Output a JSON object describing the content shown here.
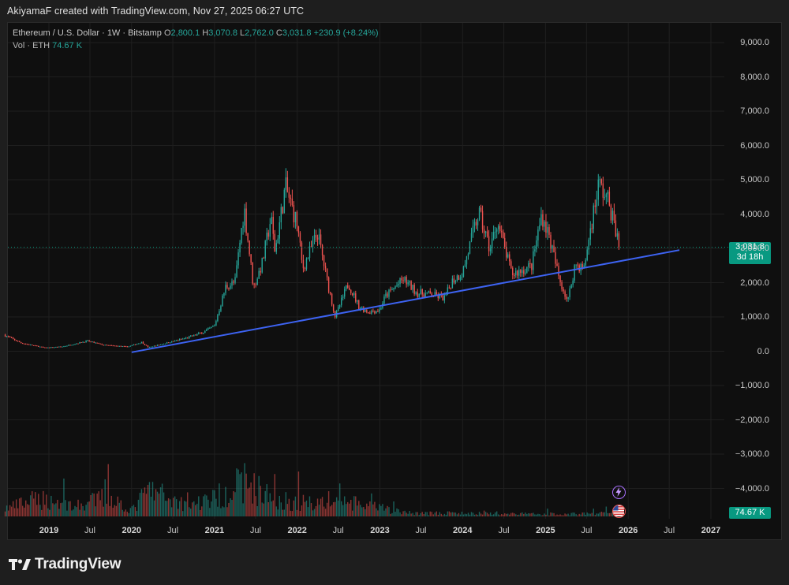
{
  "header": {
    "credit": "AkiyamaF created with TradingView.com, Nov 27, 2025 06:27 UTC"
  },
  "legend": {
    "symbol": "Ethereum / U.S. Dollar · 1W · Bitstamp",
    "open_label": "O",
    "open": "2,800.1",
    "high_label": "H",
    "high": "3,070.8",
    "low_label": "L",
    "low": "2,762.0",
    "close_label": "C",
    "close": "3,031.8",
    "change": "+230.9 (+8.24%)",
    "vol_label": "Vol · ETH",
    "vol_value": "74.67 K"
  },
  "price_tag": {
    "price": "3,031.8",
    "countdown": "3d 18h"
  },
  "volume_tag": "74.67 K",
  "footer": {
    "brand": "TradingView"
  },
  "colors": {
    "up": "#26a69a",
    "down": "#ef5350",
    "trendline": "#3d63f2",
    "bg": "#0f0f0f"
  },
  "icons": [
    "lightning-icon",
    "us-flag-icon"
  ],
  "chart_data": {
    "type": "candlestick",
    "symbol": "ETHUSD",
    "interval": "1W",
    "y_ticks": [
      "9,000.0",
      "8,000.0",
      "7,000.0",
      "6,000.0",
      "5,000.0",
      "4,000.0",
      "3,000.0",
      "2,000.0",
      "1,000.0",
      "0.0",
      "−1,000.0",
      "−2,000.0",
      "−3,000.0",
      "−4,000.0"
    ],
    "y_tick_values": [
      9000,
      8000,
      7000,
      6000,
      5000,
      4000,
      3000,
      2000,
      1000,
      0,
      -1000,
      -2000,
      -3000,
      -4000
    ],
    "x_ticks": [
      {
        "label": "2019",
        "date": "2019-01-01",
        "year": true
      },
      {
        "label": "Jul",
        "date": "2019-07-01",
        "year": false
      },
      {
        "label": "2020",
        "date": "2020-01-01",
        "year": true
      },
      {
        "label": "Jul",
        "date": "2020-07-01",
        "year": false
      },
      {
        "label": "2021",
        "date": "2021-01-01",
        "year": true
      },
      {
        "label": "Jul",
        "date": "2021-07-01",
        "year": false
      },
      {
        "label": "2022",
        "date": "2022-01-01",
        "year": true
      },
      {
        "label": "Jul",
        "date": "2022-07-01",
        "year": false
      },
      {
        "label": "2023",
        "date": "2023-01-01",
        "year": true
      },
      {
        "label": "Jul",
        "date": "2023-07-01",
        "year": false
      },
      {
        "label": "2024",
        "date": "2024-01-01",
        "year": true
      },
      {
        "label": "Jul",
        "date": "2024-07-01",
        "year": false
      },
      {
        "label": "2025",
        "date": "2025-01-01",
        "year": true
      },
      {
        "label": "Jul",
        "date": "2025-07-01",
        "year": false
      },
      {
        "label": "2026",
        "date": "2026-01-01",
        "year": true
      },
      {
        "label": "Jul",
        "date": "2026-07-01",
        "year": false
      },
      {
        "label": "2027",
        "date": "2027-01-01",
        "year": true
      }
    ],
    "price_path": [
      [
        "2018-06-15",
        480
      ],
      [
        "2018-09-01",
        240
      ],
      [
        "2018-12-15",
        100
      ],
      [
        "2019-03-01",
        135
      ],
      [
        "2019-06-20",
        300
      ],
      [
        "2019-09-01",
        180
      ],
      [
        "2019-12-15",
        130
      ],
      [
        "2020-02-15",
        265
      ],
      [
        "2020-03-15",
        110
      ],
      [
        "2020-06-01",
        240
      ],
      [
        "2020-09-01",
        390
      ],
      [
        "2020-11-15",
        560
      ],
      [
        "2021-01-01",
        740
      ],
      [
        "2021-02-20",
        1900
      ],
      [
        "2021-04-01",
        2000
      ],
      [
        "2021-05-12",
        4180
      ],
      [
        "2021-06-22",
        1850
      ],
      [
        "2021-08-01",
        2600
      ],
      [
        "2021-09-07",
        3900
      ],
      [
        "2021-09-25",
        2900
      ],
      [
        "2021-11-10",
        4800
      ],
      [
        "2022-01-01",
        3700
      ],
      [
        "2022-01-25",
        2400
      ],
      [
        "2022-04-01",
        3450
      ],
      [
        "2022-05-15",
        2000
      ],
      [
        "2022-06-18",
        1000
      ],
      [
        "2022-08-14",
        1980
      ],
      [
        "2022-10-01",
        1300
      ],
      [
        "2022-11-10",
        1150
      ],
      [
        "2022-12-30",
        1200
      ],
      [
        "2023-01-25",
        1600
      ],
      [
        "2023-04-15",
        2100
      ],
      [
        "2023-06-15",
        1700
      ],
      [
        "2023-08-15",
        1650
      ],
      [
        "2023-10-15",
        1550
      ],
      [
        "2023-11-15",
        2050
      ],
      [
        "2024-01-01",
        2300
      ],
      [
        "2024-03-12",
        4050
      ],
      [
        "2024-05-01",
        2950
      ],
      [
        "2024-06-01",
        3800
      ],
      [
        "2024-08-05",
        2250
      ],
      [
        "2024-09-15",
        2350
      ],
      [
        "2024-11-01",
        2500
      ],
      [
        "2024-12-15",
        4000
      ],
      [
        "2025-01-15",
        3400
      ],
      [
        "2025-03-01",
        2150
      ],
      [
        "2025-04-09",
        1450
      ],
      [
        "2025-05-12",
        2550
      ],
      [
        "2025-06-20",
        2400
      ],
      [
        "2025-07-20",
        3650
      ],
      [
        "2025-08-24",
        4900
      ],
      [
        "2025-10-10",
        4300
      ],
      [
        "2025-11-10",
        3400
      ],
      [
        "2025-11-27",
        3031.8
      ]
    ],
    "volume_profile": [
      [
        "2018-06-15",
        0.25
      ],
      [
        "2018-11-20",
        0.6
      ],
      [
        "2019-05-15",
        0.35
      ],
      [
        "2019-09-20",
        0.7
      ],
      [
        "2020-01-01",
        0.2
      ],
      [
        "2020-03-15",
        0.9
      ],
      [
        "2020-09-01",
        0.4
      ],
      [
        "2021-01-01",
        0.6
      ],
      [
        "2021-05-15",
        1.2
      ],
      [
        "2021-09-01",
        0.65
      ],
      [
        "2022-01-01",
        0.45
      ],
      [
        "2022-06-15",
        0.55
      ],
      [
        "2022-11-10",
        0.35
      ],
      [
        "2023-05-01",
        0.12
      ],
      [
        "2024-03-01",
        0.1
      ],
      [
        "2025-04-01",
        0.08
      ],
      [
        "2025-11-27",
        0.12
      ]
    ],
    "trendline": {
      "start": [
        "2020-01-01",
        -30
      ],
      "end": [
        "2026-08-15",
        2950
      ]
    },
    "last_price": 3031.8,
    "grid": true,
    "legend_position": "top-left"
  }
}
